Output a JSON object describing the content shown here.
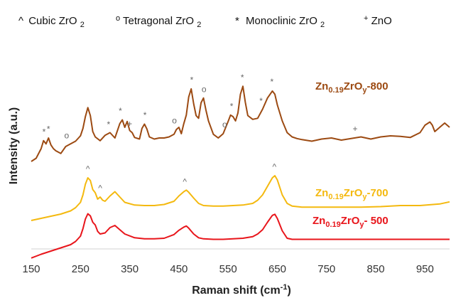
{
  "chart_data": {
    "type": "line",
    "title": "",
    "xlabel": "Raman shift (cm",
    "xlabel_sup": "-1",
    "xlabel_close": ")",
    "ylabel": "Intensity (a.u.)",
    "xlim": [
      150,
      1000
    ],
    "xticks": [
      150,
      250,
      350,
      450,
      550,
      650,
      750,
      850,
      950
    ],
    "legend": {
      "placement": "top",
      "entries": [
        {
          "symbol": "^",
          "text": "Cubic ZrO",
          "sub": "2"
        },
        {
          "symbol": "o",
          "text": "Tetragonal ZrO",
          "sub": "2"
        },
        {
          "symbol": "*",
          "text": "Monoclinic ZrO",
          "sub": "2"
        },
        {
          "symbol": "+",
          "text": "ZnO",
          "sub": ""
        }
      ]
    },
    "series": [
      {
        "name_main": "Zn",
        "name_sub1": "0.19",
        "name_mid": "ZrO",
        "name_sub2": "y",
        "name_end": "-800",
        "color": "#9C4A12",
        "x": [
          150,
          160,
          170,
          175,
          180,
          185,
          190,
          195,
          200,
          210,
          220,
          230,
          240,
          250,
          255,
          260,
          265,
          270,
          275,
          280,
          290,
          300,
          310,
          320,
          330,
          335,
          340,
          345,
          350,
          355,
          360,
          370,
          375,
          380,
          385,
          390,
          400,
          410,
          420,
          430,
          440,
          445,
          450,
          455,
          460,
          465,
          470,
          475,
          480,
          485,
          490,
          495,
          500,
          505,
          510,
          520,
          530,
          540,
          550,
          555,
          560,
          565,
          570,
          575,
          580,
          585,
          590,
          600,
          610,
          620,
          630,
          640,
          645,
          650,
          660,
          670,
          680,
          690,
          700,
          720,
          740,
          760,
          780,
          800,
          820,
          840,
          860,
          880,
          900,
          920,
          940,
          950,
          960,
          965,
          970,
          980,
          990,
          1000
        ],
        "y": [
          64,
          70,
          88,
          103,
          97,
          108,
          95,
          88,
          84,
          79,
          92,
          97,
          102,
          112,
          126,
          148,
          165,
          150,
          120,
          110,
          103,
          113,
          118,
          108,
          135,
          142,
          128,
          139,
          122,
          118,
          109,
          106,
          126,
          134,
          125,
          110,
          106,
          108,
          108,
          110,
          115,
          124,
          128,
          116,
          135,
          151,
          185,
          200,
          172,
          150,
          145,
          174,
          183,
          160,
          140,
          115,
          108,
          116,
          139,
          151,
          148,
          140,
          155,
          190,
          205,
          175,
          150,
          143,
          145,
          162,
          183,
          196,
          190,
          170,
          140,
          118,
          110,
          107,
          105,
          102,
          106,
          108,
          104,
          107,
          110,
          106,
          110,
          112,
          111,
          109,
          118,
          132,
          138,
          132,
          120,
          128,
          136,
          128
        ]
      },
      {
        "name_main": "Zn",
        "name_sub1": "0.19",
        "name_mid": "ZrO",
        "name_sub2": "y",
        "name_end": "-700",
        "color": "#F4B90F",
        "x": [
          150,
          170,
          190,
          210,
          230,
          240,
          250,
          255,
          260,
          265,
          270,
          275,
          280,
          285,
          290,
          295,
          300,
          310,
          320,
          330,
          340,
          360,
          380,
          400,
          420,
          440,
          450,
          460,
          465,
          470,
          480,
          490,
          500,
          520,
          540,
          560,
          580,
          600,
          610,
          620,
          630,
          640,
          645,
          650,
          660,
          670,
          680,
          700,
          740,
          780,
          820,
          860,
          900,
          940,
          980,
          1000
        ],
        "y": [
          -20,
          -16,
          -12,
          -8,
          -2,
          4,
          14,
          28,
          48,
          60,
          55,
          38,
          32,
          20,
          24,
          18,
          16,
          26,
          34,
          24,
          14,
          9,
          8,
          8,
          10,
          16,
          26,
          34,
          37,
          33,
          22,
          12,
          8,
          7,
          7,
          8,
          9,
          12,
          18,
          28,
          44,
          60,
          64,
          56,
          28,
          12,
          7,
          5,
          5,
          5,
          5,
          6,
          8,
          8,
          11,
          15
        ]
      },
      {
        "name_main": "Zn",
        "name_sub1": "0.19",
        "name_mid": "ZrO",
        "name_sub2": "y",
        "name_end": "- 500",
        "color": "#E8151B",
        "x": [
          150,
          170,
          190,
          210,
          230,
          240,
          250,
          255,
          260,
          265,
          270,
          275,
          280,
          285,
          290,
          300,
          310,
          320,
          330,
          340,
          360,
          380,
          400,
          420,
          440,
          450,
          460,
          465,
          470,
          480,
          490,
          500,
          520,
          540,
          560,
          580,
          600,
          610,
          620,
          630,
          640,
          645,
          650,
          660,
          670,
          680,
          700,
          740,
          780,
          820,
          860,
          900,
          940,
          980,
          1000
        ],
        "y": [
          -37,
          -30,
          -24,
          -18,
          -12,
          -6,
          4,
          18,
          36,
          46,
          42,
          30,
          25,
          13,
          8,
          10,
          20,
          24,
          16,
          8,
          1,
          -1,
          -1,
          0,
          7,
          15,
          21,
          23,
          19,
          8,
          1,
          -1,
          -2,
          -2,
          -1,
          0,
          3,
          8,
          16,
          30,
          43,
          45,
          37,
          14,
          0,
          -2,
          -2,
          -2,
          -2,
          -2,
          -2,
          -2,
          -2,
          -2,
          -2
        ]
      }
    ],
    "annotations": [
      {
        "text": "*",
        "x": 176,
        "y": 109
      },
      {
        "text": "*",
        "x": 185,
        "y": 114
      },
      {
        "text": "o",
        "x": 222,
        "y": 102
      },
      {
        "text": "*",
        "x": 307,
        "y": 123
      },
      {
        "text": "*",
        "x": 331,
        "y": 148
      },
      {
        "text": "+",
        "x": 350,
        "y": 124
      },
      {
        "text": "*",
        "x": 381,
        "y": 140
      },
      {
        "text": "o",
        "x": 441,
        "y": 130
      },
      {
        "text": "*",
        "x": 476,
        "y": 206
      },
      {
        "text": "o",
        "x": 501,
        "y": 189
      },
      {
        "text": "o",
        "x": 543,
        "y": 123
      },
      {
        "text": "*",
        "x": 557,
        "y": 157
      },
      {
        "text": "*",
        "x": 579,
        "y": 211
      },
      {
        "text": "*",
        "x": 617,
        "y": 167
      },
      {
        "text": "*",
        "x": 639,
        "y": 203
      },
      {
        "text": "+",
        "x": 808,
        "y": 115
      },
      {
        "text": "^",
        "x": 265,
        "y": 66
      },
      {
        "text": "^",
        "x": 290,
        "y": 30
      },
      {
        "text": "^",
        "x": 462,
        "y": 42
      },
      {
        "text": "^",
        "x": 644,
        "y": 70
      }
    ]
  }
}
